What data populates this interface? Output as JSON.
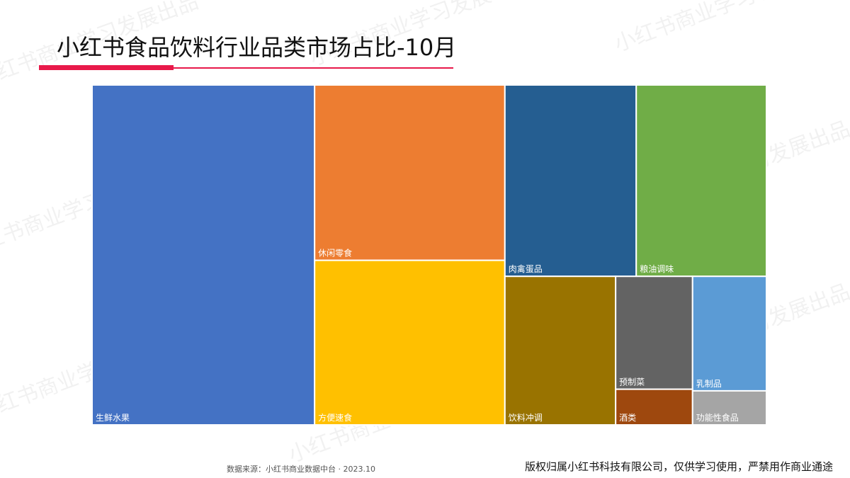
{
  "header": {
    "title": "小红书食品饮料行业品类市场占比-10月"
  },
  "colors": {
    "accent": "#e8194a"
  },
  "watermark_text": "小红书商业学习发展出品",
  "chart_data": {
    "type": "treemap",
    "title": "",
    "items": [
      {
        "name": "生鲜水果",
        "value": 33.1,
        "color": "#4472c4"
      },
      {
        "name": "休闲零食",
        "value": 14.6,
        "color": "#ed7d31"
      },
      {
        "name": "方便速食",
        "value": 13.7,
        "color": "#ffc000"
      },
      {
        "name": "肉禽蛋品",
        "value": 11.0,
        "color": "#255e91"
      },
      {
        "name": "粮油调味",
        "value": 10.9,
        "color": "#70ad47"
      },
      {
        "name": "饮料冲调",
        "value": 7.2,
        "color": "#997300"
      },
      {
        "name": "预制菜",
        "value": 3.8,
        "color": "#636363"
      },
      {
        "name": "乳制品",
        "value": 3.7,
        "color": "#5b9bd5"
      },
      {
        "name": "酒类",
        "value": 1.2,
        "color": "#9e480e"
      },
      {
        "name": "功能性食品",
        "value": 1.1,
        "color": "#a5a5a5"
      }
    ]
  },
  "footer": {
    "source": "数据来源：小红书商业数据中台 · 2023.10",
    "copyright": "版权归属小红书科技有限公司，仅供学习使用，严禁用作商业通途"
  }
}
